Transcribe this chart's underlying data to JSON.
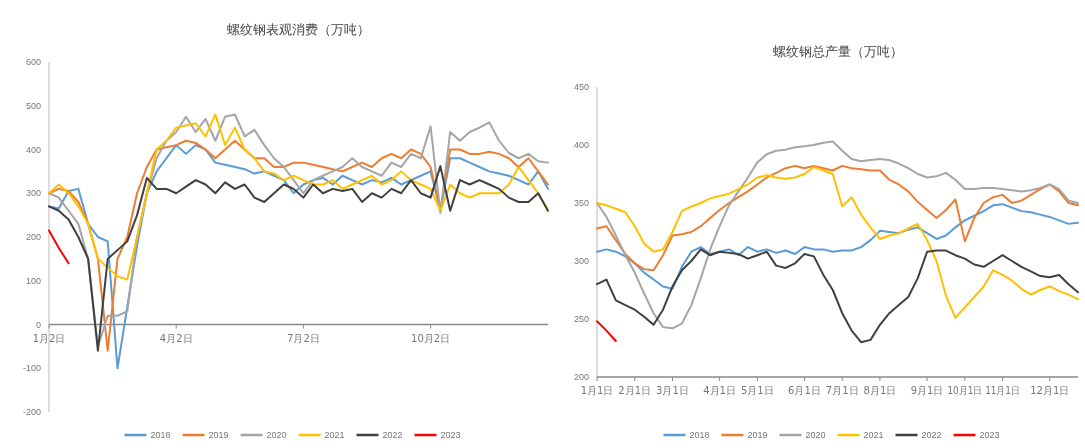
{
  "chart_data": [
    {
      "type": "line",
      "title": "螺纹钢表观消费（万吨）",
      "categories": [
        "1月2日",
        null,
        null,
        null,
        null,
        null,
        null,
        null,
        null,
        null,
        null,
        null,
        null,
        "4月2日",
        null,
        null,
        null,
        null,
        null,
        null,
        null,
        null,
        null,
        null,
        null,
        null,
        "7月2日",
        null,
        null,
        null,
        null,
        null,
        null,
        null,
        null,
        null,
        null,
        null,
        null,
        "10月2日",
        null,
        null,
        null,
        null,
        null,
        null,
        null,
        null,
        null,
        null,
        null,
        null
      ],
      "series": [
        {
          "name": "2018",
          "color": "#5b9bd5",
          "values": [
            270,
            265,
            305,
            310,
            230,
            200,
            190,
            -100,
            40,
            180,
            300,
            350,
            380,
            410,
            390,
            410,
            400,
            370,
            365,
            360,
            355,
            345,
            350,
            340,
            330,
            300,
            320,
            330,
            335,
            320,
            340,
            330,
            320,
            330,
            325,
            335,
            320,
            330,
            340,
            350,
            260,
            380,
            380,
            370,
            360,
            350,
            345,
            340,
            330,
            320,
            350,
            310
          ]
        },
        {
          "name": "2019",
          "color": "#ed7d31",
          "values": [
            300,
            310,
            305,
            280,
            230,
            150,
            -60,
            150,
            200,
            300,
            360,
            400,
            405,
            410,
            420,
            415,
            400,
            380,
            400,
            420,
            400,
            380,
            380,
            360,
            360,
            370,
            370,
            365,
            360,
            355,
            350,
            360,
            370,
            360,
            380,
            390,
            380,
            400,
            390,
            360,
            260,
            400,
            400,
            390,
            390,
            395,
            390,
            380,
            360,
            380,
            350,
            320
          ]
        },
        {
          "name": "2020",
          "color": "#a5a5a5",
          "values": [
            300,
            290,
            260,
            230,
            150,
            -50,
            20,
            20,
            30,
            200,
            300,
            380,
            420,
            440,
            475,
            440,
            470,
            420,
            475,
            480,
            430,
            445,
            410,
            380,
            360,
            330,
            300,
            330,
            340,
            350,
            360,
            380,
            360,
            350,
            340,
            370,
            360,
            390,
            380,
            453,
            255,
            440,
            420,
            440,
            450,
            462,
            420,
            392,
            380,
            390,
            373,
            370
          ]
        },
        {
          "name": "2021",
          "color": "#ffc000",
          "values": [
            300,
            320,
            300,
            270,
            230,
            150,
            130,
            110,
            103,
            200,
            300,
            400,
            420,
            450,
            455,
            460,
            430,
            480,
            410,
            450,
            400,
            380,
            350,
            345,
            330,
            340,
            330,
            320,
            320,
            330,
            310,
            320,
            330,
            340,
            320,
            330,
            350,
            330,
            320,
            310,
            260,
            320,
            300,
            290,
            300,
            300,
            300,
            320,
            360,
            330,
            300,
            260
          ]
        },
        {
          "name": "2022",
          "color": "#404040",
          "values": [
            270,
            260,
            240,
            200,
            150,
            -60,
            150,
            170,
            190,
            250,
            335,
            310,
            310,
            300,
            315,
            330,
            320,
            300,
            325,
            310,
            320,
            290,
            280,
            300,
            320,
            310,
            290,
            320,
            300,
            310,
            305,
            310,
            280,
            300,
            290,
            310,
            300,
            330,
            300,
            290,
            362,
            260,
            330,
            320,
            330,
            320,
            310,
            290,
            280,
            280,
            300,
            260
          ]
        },
        {
          "name": "2023",
          "color": "#ff0000",
          "values": [
            215,
            175,
            140,
            null,
            null,
            null,
            null,
            null,
            null,
            null,
            null,
            null,
            null,
            null,
            null,
            null,
            null,
            null,
            null,
            null,
            null,
            null,
            null,
            null,
            null,
            null,
            null,
            null,
            null,
            null,
            null,
            null,
            null,
            null,
            null,
            null,
            null,
            null,
            null,
            null,
            null,
            null,
            null,
            null,
            null,
            null,
            null,
            null,
            null,
            null,
            null,
            null
          ]
        }
      ],
      "ylim": [
        -200,
        600
      ],
      "yticks": [
        -200,
        -100,
        0,
        100,
        200,
        300,
        400,
        500,
        600
      ],
      "legend": "bottom"
    },
    {
      "type": "line",
      "title": "螺纹钢总产量（万吨）",
      "categories": [
        "1月1日",
        null,
        null,
        null,
        "2月1日",
        null,
        null,
        null,
        "3月1日",
        null,
        null,
        null,
        null,
        "4月1日",
        null,
        null,
        null,
        "5月1日",
        null,
        null,
        null,
        null,
        "6月1日",
        null,
        null,
        null,
        "7月1日",
        null,
        null,
        null,
        "8月1日",
        null,
        null,
        null,
        null,
        "9月1日",
        null,
        null,
        null,
        "10月1日",
        null,
        null,
        null,
        "11月1日",
        null,
        null,
        null,
        null,
        "12月1日",
        null,
        null,
        null
      ],
      "series": [
        {
          "name": "2018",
          "color": "#5b9bd5",
          "values": [
            308,
            310,
            308,
            304,
            298,
            290,
            284,
            278,
            276,
            295,
            308,
            312,
            306,
            308,
            310,
            305,
            312,
            308,
            310,
            307,
            309,
            306,
            312,
            310,
            310,
            308,
            309,
            309,
            312,
            318,
            326,
            325,
            324,
            327,
            329,
            324,
            319,
            322,
            329,
            335,
            339,
            343,
            348,
            349,
            346,
            343,
            342,
            340,
            338,
            335,
            332,
            333
          ]
        },
        {
          "name": "2019",
          "color": "#ed7d31",
          "values": [
            328,
            330,
            318,
            306,
            298,
            293,
            292,
            305,
            322,
            323,
            325,
            330,
            337,
            344,
            350,
            355,
            360,
            366,
            372,
            376,
            380,
            382,
            380,
            382,
            380,
            378,
            382,
            380,
            379,
            378,
            378,
            370,
            366,
            360,
            351,
            344,
            337,
            344,
            353,
            317,
            337,
            350,
            355,
            357,
            350,
            352,
            357,
            362,
            366,
            360,
            350,
            348
          ]
        },
        {
          "name": "2020",
          "color": "#a5a5a5",
          "values": [
            350,
            338,
            322,
            305,
            290,
            272,
            255,
            243,
            242,
            246,
            262,
            285,
            310,
            330,
            348,
            360,
            372,
            385,
            392,
            395,
            396,
            398,
            399,
            400,
            402,
            403,
            395,
            388,
            386,
            387,
            388,
            387,
            384,
            380,
            375,
            372,
            373,
            376,
            370,
            362,
            362,
            363,
            363,
            362,
            361,
            360,
            361,
            363,
            366,
            362,
            352,
            350
          ]
        },
        {
          "name": "2021",
          "color": "#ffc000",
          "values": [
            350,
            348,
            345,
            342,
            330,
            315,
            308,
            310,
            325,
            343,
            347,
            350,
            354,
            356,
            358,
            362,
            366,
            372,
            374,
            372,
            371,
            372,
            375,
            381,
            378,
            375,
            347,
            355,
            340,
            329,
            319,
            322,
            324,
            328,
            332,
            318,
            300,
            270,
            251,
            260,
            269,
            278,
            292,
            288,
            283,
            276,
            271,
            275,
            278,
            274,
            271,
            267
          ]
        },
        {
          "name": "2022",
          "color": "#404040",
          "values": [
            280,
            284,
            266,
            262,
            258,
            252,
            245,
            258,
            278,
            292,
            300,
            310,
            305,
            308,
            307,
            306,
            302,
            305,
            308,
            296,
            294,
            298,
            306,
            304,
            288,
            275,
            255,
            240,
            230,
            232,
            245,
            255,
            262,
            269,
            285,
            308,
            309,
            309,
            305,
            302,
            297,
            295,
            300,
            305,
            300,
            295,
            291,
            287,
            286,
            288,
            280,
            273
          ]
        },
        {
          "name": "2023",
          "color": "#ff0000",
          "values": [
            248,
            240,
            231,
            null,
            null,
            null,
            null,
            null,
            null,
            null,
            null,
            null,
            null,
            null,
            null,
            null,
            null,
            null,
            null,
            null,
            null,
            null,
            null,
            null,
            null,
            null,
            null,
            null,
            null,
            null,
            null,
            null,
            null,
            null,
            null,
            null,
            null,
            null,
            null,
            null,
            null,
            null,
            null,
            null,
            null,
            null,
            null,
            null,
            null,
            null,
            null,
            null
          ]
        }
      ],
      "ylim": [
        200,
        450
      ],
      "yticks": [
        200,
        250,
        300,
        350,
        400,
        450
      ],
      "legend": "bottom"
    }
  ]
}
